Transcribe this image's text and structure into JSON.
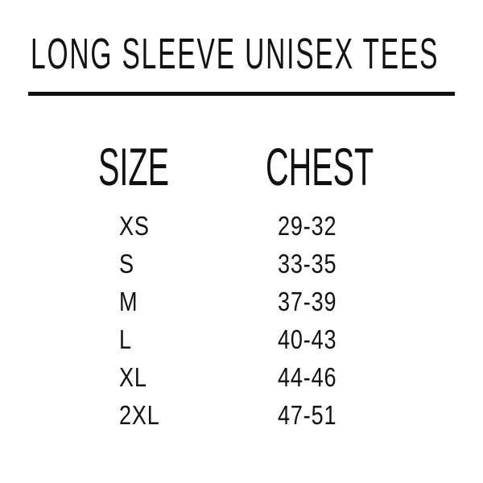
{
  "title": "LONG SLEEVE UNISEX  TEES",
  "columns": [
    "SIZE",
    "CHEST"
  ],
  "rows": [
    {
      "size": "XS",
      "chest": "29-32"
    },
    {
      "size": "S",
      "chest": "33-35"
    },
    {
      "size": "M",
      "chest": "37-39"
    },
    {
      "size": "L",
      "chest": "40-43"
    },
    {
      "size": "XL",
      "chest": "44-46"
    },
    {
      "size": "2XL",
      "chest": "47-51"
    }
  ]
}
